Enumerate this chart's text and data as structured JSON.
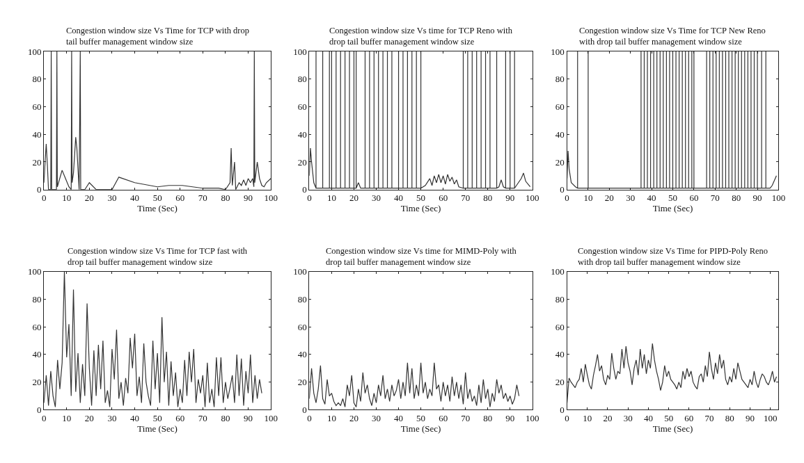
{
  "chart_data": [
    {
      "type": "line",
      "title": "Congestion window size Vs Time for TCP with drop tail buffer management window size",
      "xlabel": "Time (Sec)",
      "xlim": [
        0,
        100
      ],
      "ylim": [
        0,
        100
      ],
      "xticks": [
        0,
        10,
        20,
        30,
        40,
        50,
        60,
        70,
        80,
        90,
        100
      ],
      "yticks": [
        0,
        20,
        40,
        60,
        80,
        100
      ],
      "marker": "none",
      "line_style": "solid",
      "series": [
        {
          "color": "#333333",
          "x": [
            0,
            0.5,
            1,
            1.5,
            2,
            3,
            3.2,
            3.4,
            5.5,
            5.7,
            5.9,
            8,
            11,
            12,
            12.2,
            12.4,
            13,
            14,
            14.5,
            15.5,
            16,
            16.2,
            18,
            20,
            23,
            30,
            33,
            40,
            50,
            55,
            61,
            70,
            77,
            80,
            82,
            82.5,
            83,
            84,
            84.5,
            86,
            87,
            88,
            89,
            90,
            91,
            92,
            92.5,
            92.7,
            92.9,
            94,
            95,
            96,
            97,
            98,
            100
          ],
          "values": [
            5,
            20,
            33,
            18,
            0,
            0,
            100,
            0,
            0,
            100,
            2,
            14,
            2,
            0,
            100,
            5,
            12,
            38,
            30,
            0,
            100,
            0,
            0,
            5,
            0,
            0,
            9,
            5,
            2,
            3,
            3,
            1,
            1,
            0,
            5,
            30,
            3,
            20,
            0,
            5,
            3,
            7,
            3,
            8,
            5,
            8,
            2,
            100,
            5,
            20,
            8,
            3,
            2,
            5,
            8
          ]
        }
      ]
    },
    {
      "type": "line",
      "title": "Congestion window size Vs time for TCP Reno with drop tail buffer management window size",
      "xlabel": "Time (Sec)",
      "xlim": [
        0,
        100
      ],
      "ylim": [
        0,
        100
      ],
      "xticks": [
        0,
        10,
        20,
        30,
        40,
        50,
        60,
        70,
        80,
        90,
        100
      ],
      "yticks": [
        0,
        20,
        40,
        60,
        80,
        100
      ],
      "marker": "none",
      "line_style": "solid",
      "series": [
        {
          "color": "#333333",
          "x": [
            0,
            0.5,
            1,
            2,
            3,
            3,
            3,
            6,
            6,
            6,
            9,
            9,
            9,
            10,
            10,
            10,
            12,
            12,
            12,
            14,
            14,
            14,
            16,
            16,
            16,
            18,
            18,
            18,
            20,
            20,
            20,
            21,
            21,
            21,
            22,
            23,
            25,
            25,
            25,
            27,
            27,
            27,
            29,
            29,
            29,
            31,
            31,
            31,
            33,
            33,
            33,
            35,
            35,
            35,
            37,
            37,
            37,
            40,
            40,
            40,
            42,
            42,
            42,
            44,
            44,
            44,
            46,
            46,
            46,
            48,
            48,
            48,
            50,
            50,
            50,
            52,
            54,
            55,
            56,
            57,
            58,
            59,
            60,
            61,
            62,
            63,
            64,
            65,
            66,
            67,
            69,
            69,
            69,
            71,
            71,
            71,
            73,
            73,
            73,
            75,
            75,
            75,
            77,
            77,
            77,
            79,
            79,
            79,
            81,
            81,
            81,
            84,
            84,
            84,
            85,
            86,
            87,
            88,
            88,
            88,
            90,
            90,
            90,
            92,
            92,
            92,
            95,
            96,
            97,
            99
          ],
          "values": [
            10,
            30,
            20,
            5,
            1,
            100,
            1,
            1,
            100,
            1,
            1,
            100,
            1,
            1,
            100,
            1,
            1,
            100,
            1,
            1,
            100,
            1,
            1,
            100,
            1,
            1,
            100,
            1,
            1,
            100,
            1,
            1,
            100,
            1,
            5,
            1,
            1,
            100,
            1,
            1,
            100,
            1,
            1,
            100,
            1,
            1,
            100,
            1,
            1,
            100,
            1,
            1,
            100,
            1,
            1,
            100,
            1,
            1,
            100,
            1,
            1,
            100,
            1,
            1,
            100,
            1,
            1,
            100,
            1,
            1,
            100,
            1,
            1,
            100,
            1,
            3,
            8,
            3,
            10,
            5,
            11,
            5,
            10,
            4,
            11,
            6,
            9,
            4,
            7,
            2,
            1,
            100,
            1,
            1,
            100,
            1,
            1,
            100,
            1,
            1,
            100,
            1,
            1,
            100,
            1,
            1,
            100,
            1,
            1,
            100,
            1,
            1,
            100,
            1,
            2,
            7,
            2,
            1,
            100,
            1,
            1,
            100,
            1,
            1,
            100,
            1,
            8,
            12,
            6,
            2
          ]
        }
      ]
    },
    {
      "type": "line",
      "title": "Congestion window size Vs Time for TCP New Reno with drop tail buffer management window size",
      "xlabel": "Time (Sec)",
      "xlim": [
        0,
        100
      ],
      "ylim": [
        0,
        100
      ],
      "xticks": [
        0,
        10,
        20,
        30,
        40,
        50,
        60,
        70,
        80,
        90,
        100
      ],
      "yticks": [
        0,
        20,
        40,
        60,
        80,
        100
      ],
      "marker": "none",
      "line_style": "solid",
      "series": [
        {
          "color": "#333333",
          "x": [
            0,
            0.5,
            1,
            2,
            4,
            5,
            5,
            5,
            10,
            10,
            10,
            35,
            35,
            35,
            36.5,
            36.5,
            36.5,
            38,
            38,
            38,
            39.5,
            39.5,
            39.5,
            41,
            41,
            41,
            42.5,
            42.5,
            42.5,
            44,
            44,
            44,
            45.5,
            45.5,
            45.5,
            47,
            47,
            47,
            48.5,
            48.5,
            48.5,
            50,
            50,
            50,
            51.5,
            51.5,
            51.5,
            53,
            53,
            53,
            54.5,
            54.5,
            54.5,
            56,
            56,
            56,
            57.5,
            57.5,
            57.5,
            59,
            59,
            59,
            60,
            60,
            60,
            66,
            66,
            66,
            67.5,
            67.5,
            67.5,
            69,
            69,
            69,
            70.5,
            70.5,
            70.5,
            72,
            72,
            72,
            73.5,
            73.5,
            73.5,
            75,
            75,
            75,
            76.5,
            76.5,
            76.5,
            78,
            78,
            78,
            79.5,
            79.5,
            79.5,
            81,
            81,
            81,
            82.5,
            82.5,
            82.5,
            84,
            84,
            84,
            85.5,
            85.5,
            85.5,
            87,
            87,
            87,
            88.5,
            88.5,
            88.5,
            90,
            90,
            90,
            92,
            92,
            92,
            94,
            94,
            94,
            96,
            97,
            99
          ],
          "values": [
            8,
            28,
            15,
            5,
            2,
            1,
            100,
            1,
            1,
            100,
            1,
            1,
            100,
            1,
            1,
            100,
            1,
            1,
            100,
            1,
            1,
            100,
            1,
            1,
            100,
            1,
            1,
            100,
            1,
            1,
            100,
            1,
            1,
            100,
            1,
            1,
            100,
            1,
            1,
            100,
            1,
            1,
            100,
            1,
            1,
            100,
            1,
            1,
            100,
            1,
            1,
            100,
            1,
            1,
            100,
            1,
            1,
            100,
            1,
            1,
            100,
            1,
            1,
            100,
            1,
            1,
            100,
            1,
            1,
            100,
            1,
            1,
            100,
            1,
            1,
            100,
            1,
            1,
            100,
            1,
            1,
            100,
            1,
            1,
            100,
            1,
            1,
            100,
            1,
            1,
            100,
            1,
            1,
            100,
            1,
            1,
            100,
            1,
            1,
            100,
            1,
            1,
            100,
            1,
            1,
            100,
            1,
            1,
            100,
            1,
            1,
            100,
            1,
            1,
            100,
            1,
            1,
            100,
            1,
            1,
            100,
            1,
            1,
            3,
            10
          ]
        }
      ]
    },
    {
      "type": "line",
      "title": "Congestion window size Vs Time for TCP fast with drop tail buffer management window size",
      "xlabel": "Time (Sec)",
      "xlim": [
        0,
        100
      ],
      "ylim": [
        0,
        100
      ],
      "xticks": [
        0,
        10,
        20,
        30,
        40,
        50,
        60,
        70,
        80,
        90,
        100
      ],
      "yticks": [
        0,
        20,
        40,
        60,
        80,
        100
      ],
      "marker": "none",
      "line_style": "solid",
      "series": [
        {
          "color": "#333333",
          "x": [
            0,
            1,
            2,
            3,
            4,
            5,
            6,
            7,
            8,
            9,
            10,
            11,
            12,
            13,
            14,
            15,
            16,
            17,
            18,
            19,
            20,
            21,
            22,
            23,
            24,
            25,
            26,
            27,
            28,
            29,
            30,
            31,
            32,
            33,
            34,
            35,
            36,
            37,
            38,
            39,
            40,
            41,
            42,
            43,
            44,
            45,
            46,
            47,
            48,
            49,
            50,
            51,
            52,
            53,
            54,
            55,
            56,
            57,
            58,
            59,
            60,
            61,
            62,
            63,
            64,
            65,
            66,
            67,
            68,
            69,
            70,
            71,
            72,
            73,
            74,
            75,
            76,
            77,
            78,
            79,
            80,
            81,
            82,
            83,
            84,
            85,
            86,
            87,
            88,
            89,
            90,
            91,
            92,
            93,
            94,
            95,
            96
          ],
          "values": [
            5,
            25,
            3,
            28,
            10,
            2,
            36,
            15,
            34,
            100,
            38,
            62,
            10,
            87,
            13,
            41,
            5,
            33,
            10,
            77,
            30,
            3,
            43,
            10,
            47,
            15,
            50,
            5,
            14,
            2,
            44,
            22,
            58,
            8,
            20,
            3,
            23,
            12,
            52,
            30,
            55,
            10,
            24,
            5,
            48,
            20,
            10,
            3,
            50,
            15,
            41,
            5,
            67,
            20,
            42,
            3,
            35,
            10,
            27,
            2,
            15,
            5,
            36,
            10,
            42,
            20,
            44,
            5,
            22,
            12,
            25,
            2,
            34,
            5,
            15,
            2,
            38,
            10,
            38,
            5,
            20,
            8,
            16,
            25,
            5,
            40,
            10,
            37,
            3,
            28,
            12,
            40,
            5,
            25,
            8,
            22,
            12
          ]
        }
      ]
    },
    {
      "type": "line",
      "title": "Congestion window size Vs time for MIMD-Poly with drop tail buffer management window size",
      "xlabel": "Time (Sec)",
      "xlim": [
        0,
        100
      ],
      "ylim": [
        0,
        100
      ],
      "xticks": [
        0,
        10,
        20,
        30,
        40,
        50,
        60,
        70,
        80,
        90,
        100
      ],
      "yticks": [
        0,
        20,
        40,
        60,
        80,
        100
      ],
      "marker": "none",
      "line_style": "solid",
      "series": [
        {
          "color": "#333333",
          "x": [
            0,
            1,
            2,
            3,
            4,
            5,
            6,
            7,
            8,
            9,
            10,
            11,
            12,
            13,
            14,
            15,
            16,
            17,
            18,
            19,
            20,
            21,
            22,
            23,
            24,
            25,
            26,
            27,
            28,
            29,
            30,
            31,
            32,
            33,
            34,
            35,
            36,
            37,
            38,
            39,
            40,
            41,
            42,
            43,
            44,
            45,
            46,
            47,
            48,
            49,
            50,
            51,
            52,
            53,
            54,
            55,
            56,
            57,
            58,
            59,
            60,
            61,
            62,
            63,
            64,
            65,
            66,
            67,
            68,
            69,
            70,
            71,
            72,
            73,
            74,
            75,
            76,
            77,
            78,
            79,
            80,
            81,
            82,
            83,
            84,
            85,
            86,
            87,
            88,
            89,
            90,
            91,
            92,
            93,
            94
          ],
          "values": [
            8,
            30,
            12,
            5,
            15,
            32,
            8,
            4,
            22,
            10,
            12,
            6,
            3,
            5,
            3,
            8,
            2,
            18,
            10,
            25,
            5,
            2,
            15,
            6,
            27,
            12,
            18,
            8,
            3,
            12,
            5,
            18,
            10,
            25,
            8,
            15,
            6,
            18,
            10,
            14,
            22,
            8,
            20,
            10,
            34,
            12,
            30,
            8,
            18,
            10,
            34,
            12,
            20,
            8,
            15,
            10,
            34,
            15,
            18,
            6,
            20,
            10,
            18,
            6,
            24,
            10,
            20,
            8,
            18,
            4,
            27,
            8,
            15,
            6,
            10,
            3,
            18,
            5,
            22,
            8,
            15,
            2,
            12,
            6,
            22,
            12,
            18,
            8,
            12,
            6,
            10,
            4,
            8,
            18,
            10
          ]
        }
      ]
    },
    {
      "type": "line",
      "title": "Congestion window size Vs Time for PIPD-Poly Reno with drop tail buffer management window size",
      "xlabel": "Time (Sec)",
      "xlim": [
        0,
        104
      ],
      "ylim": [
        0,
        100
      ],
      "xticks": [
        0,
        10,
        20,
        30,
        40,
        50,
        60,
        70,
        80,
        90,
        100
      ],
      "yticks": [
        0,
        20,
        40,
        60,
        80,
        100
      ],
      "marker": "none",
      "line_style": "solid",
      "series": [
        {
          "color": "#333333",
          "x": [
            0,
            1,
            2,
            3,
            4,
            5,
            6,
            7,
            8,
            9,
            10,
            11,
            12,
            13,
            14,
            15,
            16,
            17,
            18,
            19,
            20,
            21,
            22,
            23,
            24,
            25,
            26,
            27,
            28,
            29,
            30,
            31,
            32,
            33,
            34,
            35,
            36,
            37,
            38,
            39,
            40,
            41,
            42,
            43,
            44,
            45,
            46,
            47,
            48,
            49,
            50,
            51,
            52,
            53,
            54,
            55,
            56,
            57,
            58,
            59,
            60,
            61,
            62,
            63,
            64,
            65,
            66,
            67,
            68,
            69,
            70,
            71,
            72,
            73,
            74,
            75,
            76,
            77,
            78,
            79,
            80,
            81,
            82,
            83,
            84,
            85,
            86,
            87,
            88,
            89,
            90,
            91,
            92,
            93,
            94,
            95,
            96,
            97,
            98,
            99,
            100,
            101,
            102,
            103
          ],
          "values": [
            5,
            23,
            20,
            18,
            16,
            20,
            22,
            30,
            20,
            33,
            25,
            18,
            15,
            25,
            32,
            40,
            28,
            32,
            22,
            18,
            25,
            22,
            41,
            30,
            22,
            28,
            26,
            44,
            30,
            46,
            34,
            28,
            18,
            30,
            36,
            25,
            44,
            30,
            40,
            26,
            36,
            30,
            48,
            36,
            28,
            22,
            14,
            20,
            32,
            24,
            28,
            22,
            20,
            18,
            15,
            20,
            16,
            28,
            22,
            30,
            24,
            28,
            20,
            17,
            15,
            24,
            26,
            20,
            32,
            24,
            42,
            30,
            22,
            34,
            26,
            40,
            30,
            36,
            22,
            18,
            24,
            20,
            30,
            22,
            34,
            28,
            22,
            20,
            18,
            16,
            22,
            18,
            28,
            20,
            16,
            22,
            26,
            24,
            20,
            18,
            22,
            28,
            20,
            24
          ]
        }
      ]
    }
  ]
}
